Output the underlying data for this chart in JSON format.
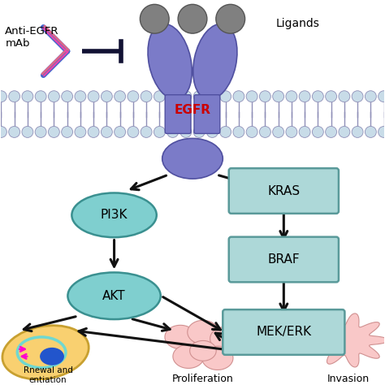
{
  "bg_color": "#ffffff",
  "egfr_color": "#7b7bc8",
  "egfr_label": "EGFR",
  "egfr_label_color": "#cc0000",
  "ligand_label": "Ligands",
  "antibody_label": "Anti-EGFR\nmAb",
  "pi3k_label": "PI3K",
  "akt_label": "AKT",
  "kras_label": "KRAS",
  "braf_label": "BRAF",
  "mekerk_label": "MEK/ERK",
  "box_color": "#add8d8",
  "box_edge_color": "#5a9a9a",
  "ellipse_color": "#7fcfcf",
  "ellipse_edge_color": "#3a9090",
  "arrow_color": "#111111",
  "proliferation_label": "Proliferation",
  "invasion_label": "Invasion",
  "renewal_label": "newal and\nentiation",
  "cell_color_pink": "#f9c8c8",
  "cell_color_orange": "#f9d070",
  "cell_color_cyan": "#70d8d0",
  "mem_color": "#c8dce8",
  "mem_line": "#9090b8",
  "ligand_gray": "#808080",
  "ab_blue_dark": "#2244aa",
  "ab_blue_mid": "#4466cc",
  "ab_pink1": "#dd6688",
  "ab_pink2": "#ee44aa"
}
